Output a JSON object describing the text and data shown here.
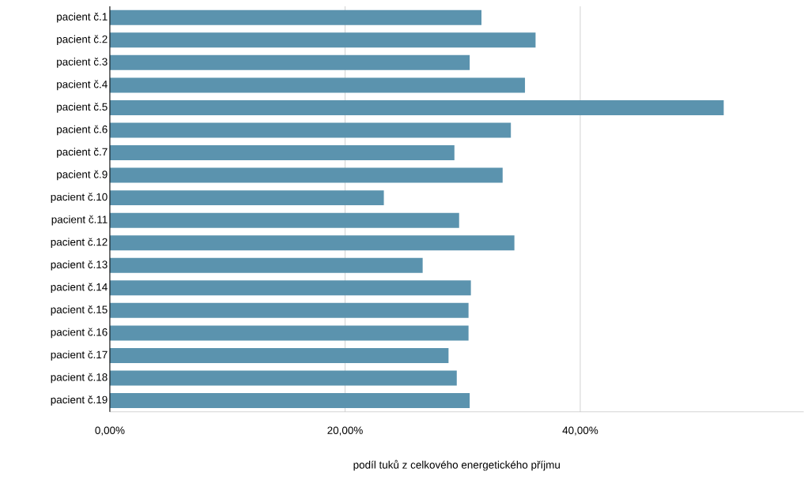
{
  "chart_data": {
    "type": "bar",
    "orientation": "horizontal",
    "xlabel": "podíl tuků z celkového energetického příjmu",
    "categories": [
      "pacient č.1",
      "pacient č.2",
      "pacient č.3",
      "pacient č.4",
      "pacient č.5",
      "pacient č.6",
      "pacient č.7",
      "pacient č.9",
      "pacient č.10",
      "pacient č.11",
      "pacient č.12",
      "pacient č.13",
      "pacient č.14",
      "pacient č.15",
      "pacient č.16",
      "pacient č.17",
      "pacient č.18",
      "pacient č.19"
    ],
    "values": [
      31.6,
      36.2,
      30.6,
      35.3,
      52.2,
      34.1,
      29.3,
      33.4,
      23.3,
      29.7,
      34.4,
      26.6,
      30.7,
      30.5,
      30.5,
      28.8,
      29.5,
      30.6
    ],
    "color": "#5b93ae",
    "xlim": [
      0,
      59
    ],
    "xticks": [
      {
        "value": 0,
        "label": "0,00%"
      },
      {
        "value": 20,
        "label": "20,00%"
      },
      {
        "value": 40,
        "label": "40,00%"
      }
    ],
    "grid": "x"
  }
}
